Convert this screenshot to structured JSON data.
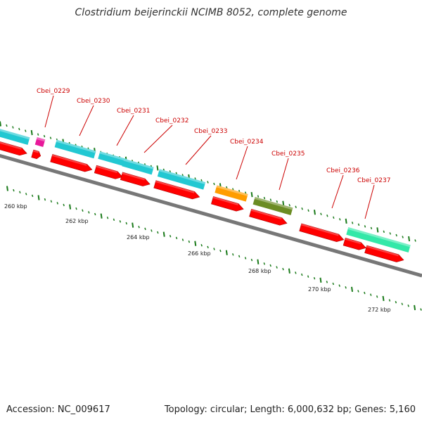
{
  "title": "Clostridium beijerinckii NCIMB 8052, complete genome",
  "footer": {
    "accession": "Accession: NC_009617",
    "summary": "Topology: circular; Length: 6,000,632 bp; Genes: 5,160"
  },
  "colors": {
    "cds": "#ff0000",
    "backbone": "#777777",
    "tick": "#1a7a1a",
    "label": "#cc0000",
    "cyan": "#22c8d2",
    "magenta": "#e8199a",
    "orange": "#ff9d00",
    "olive": "#6b8c23",
    "mint": "#33e8a8"
  },
  "kbp_ticks": [
    "260 kbp",
    "262 kbp",
    "264 kbp",
    "266 kbp",
    "268 kbp",
    "270 kbp",
    "272 kbp"
  ],
  "gene_labels": [
    "Cbei_0229",
    "Cbei_0230",
    "Cbei_0231",
    "Cbei_0232",
    "Cbei_0233",
    "Cbei_0234",
    "Cbei_0235",
    "Cbei_0236",
    "Cbei_0237"
  ]
}
